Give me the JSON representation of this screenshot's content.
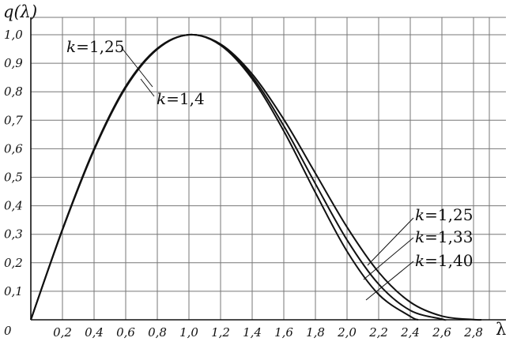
{
  "chart_data": {
    "type": "line",
    "ylabel": "q(λ)",
    "xlabel": "λ",
    "origin_label": "0",
    "xlim": [
      0,
      2.9
    ],
    "ylim": [
      0,
      1.07
    ],
    "grid": true,
    "x_ticks": [
      "0,2",
      "0,4",
      "0,6",
      "0,8",
      "1,0",
      "1,2",
      "1,4",
      "1,6",
      "1,8",
      "2,0",
      "2,2",
      "2,4",
      "2,6",
      "2,8"
    ],
    "y_ticks": [
      "0,1",
      "0,2",
      "0,3",
      "0,4",
      "0,5",
      "0,6",
      "0,7",
      "0,8",
      "0,9",
      "1,0"
    ],
    "series": [
      {
        "name": "k=1,25",
        "x": [
          0,
          0.2,
          0.4,
          0.6,
          0.8,
          1.0,
          1.2,
          1.4,
          1.6,
          1.8,
          2.0,
          2.2,
          2.4,
          2.6,
          2.8,
          2.85
        ],
        "y": [
          0,
          0.318,
          0.6,
          0.819,
          0.952,
          1.0,
          0.967,
          0.862,
          0.703,
          0.514,
          0.325,
          0.167,
          0.062,
          0.013,
          0.0006,
          0
        ]
      },
      {
        "name": "k=1,33",
        "x": [
          0,
          0.2,
          0.4,
          0.6,
          0.8,
          1.0,
          1.2,
          1.4,
          1.6,
          1.8,
          2.0,
          2.2,
          2.4,
          2.6,
          2.62
        ],
        "y": [
          0,
          0.316,
          0.597,
          0.816,
          0.95,
          1.0,
          0.965,
          0.853,
          0.68,
          0.477,
          0.28,
          0.125,
          0.033,
          0.0024,
          0
        ]
      },
      {
        "name": "k=1,40",
        "x": [
          0,
          0.2,
          0.4,
          0.6,
          0.8,
          1.0,
          1.2,
          1.4,
          1.6,
          1.8,
          2.0,
          2.2,
          2.4,
          2.45
        ],
        "y": [
          0,
          0.315,
          0.595,
          0.814,
          0.949,
          1.0,
          0.963,
          0.845,
          0.662,
          0.446,
          0.24,
          0.089,
          0.012,
          0
        ]
      }
    ],
    "annotations": [
      {
        "k": "k",
        "value": "=1,25"
      },
      {
        "k": "k",
        "value": "=1,4"
      },
      {
        "k": "k",
        "value": "=1,25"
      },
      {
        "k": "k",
        "value": "=1,33"
      },
      {
        "k": "k",
        "value": "=1,40"
      }
    ]
  }
}
